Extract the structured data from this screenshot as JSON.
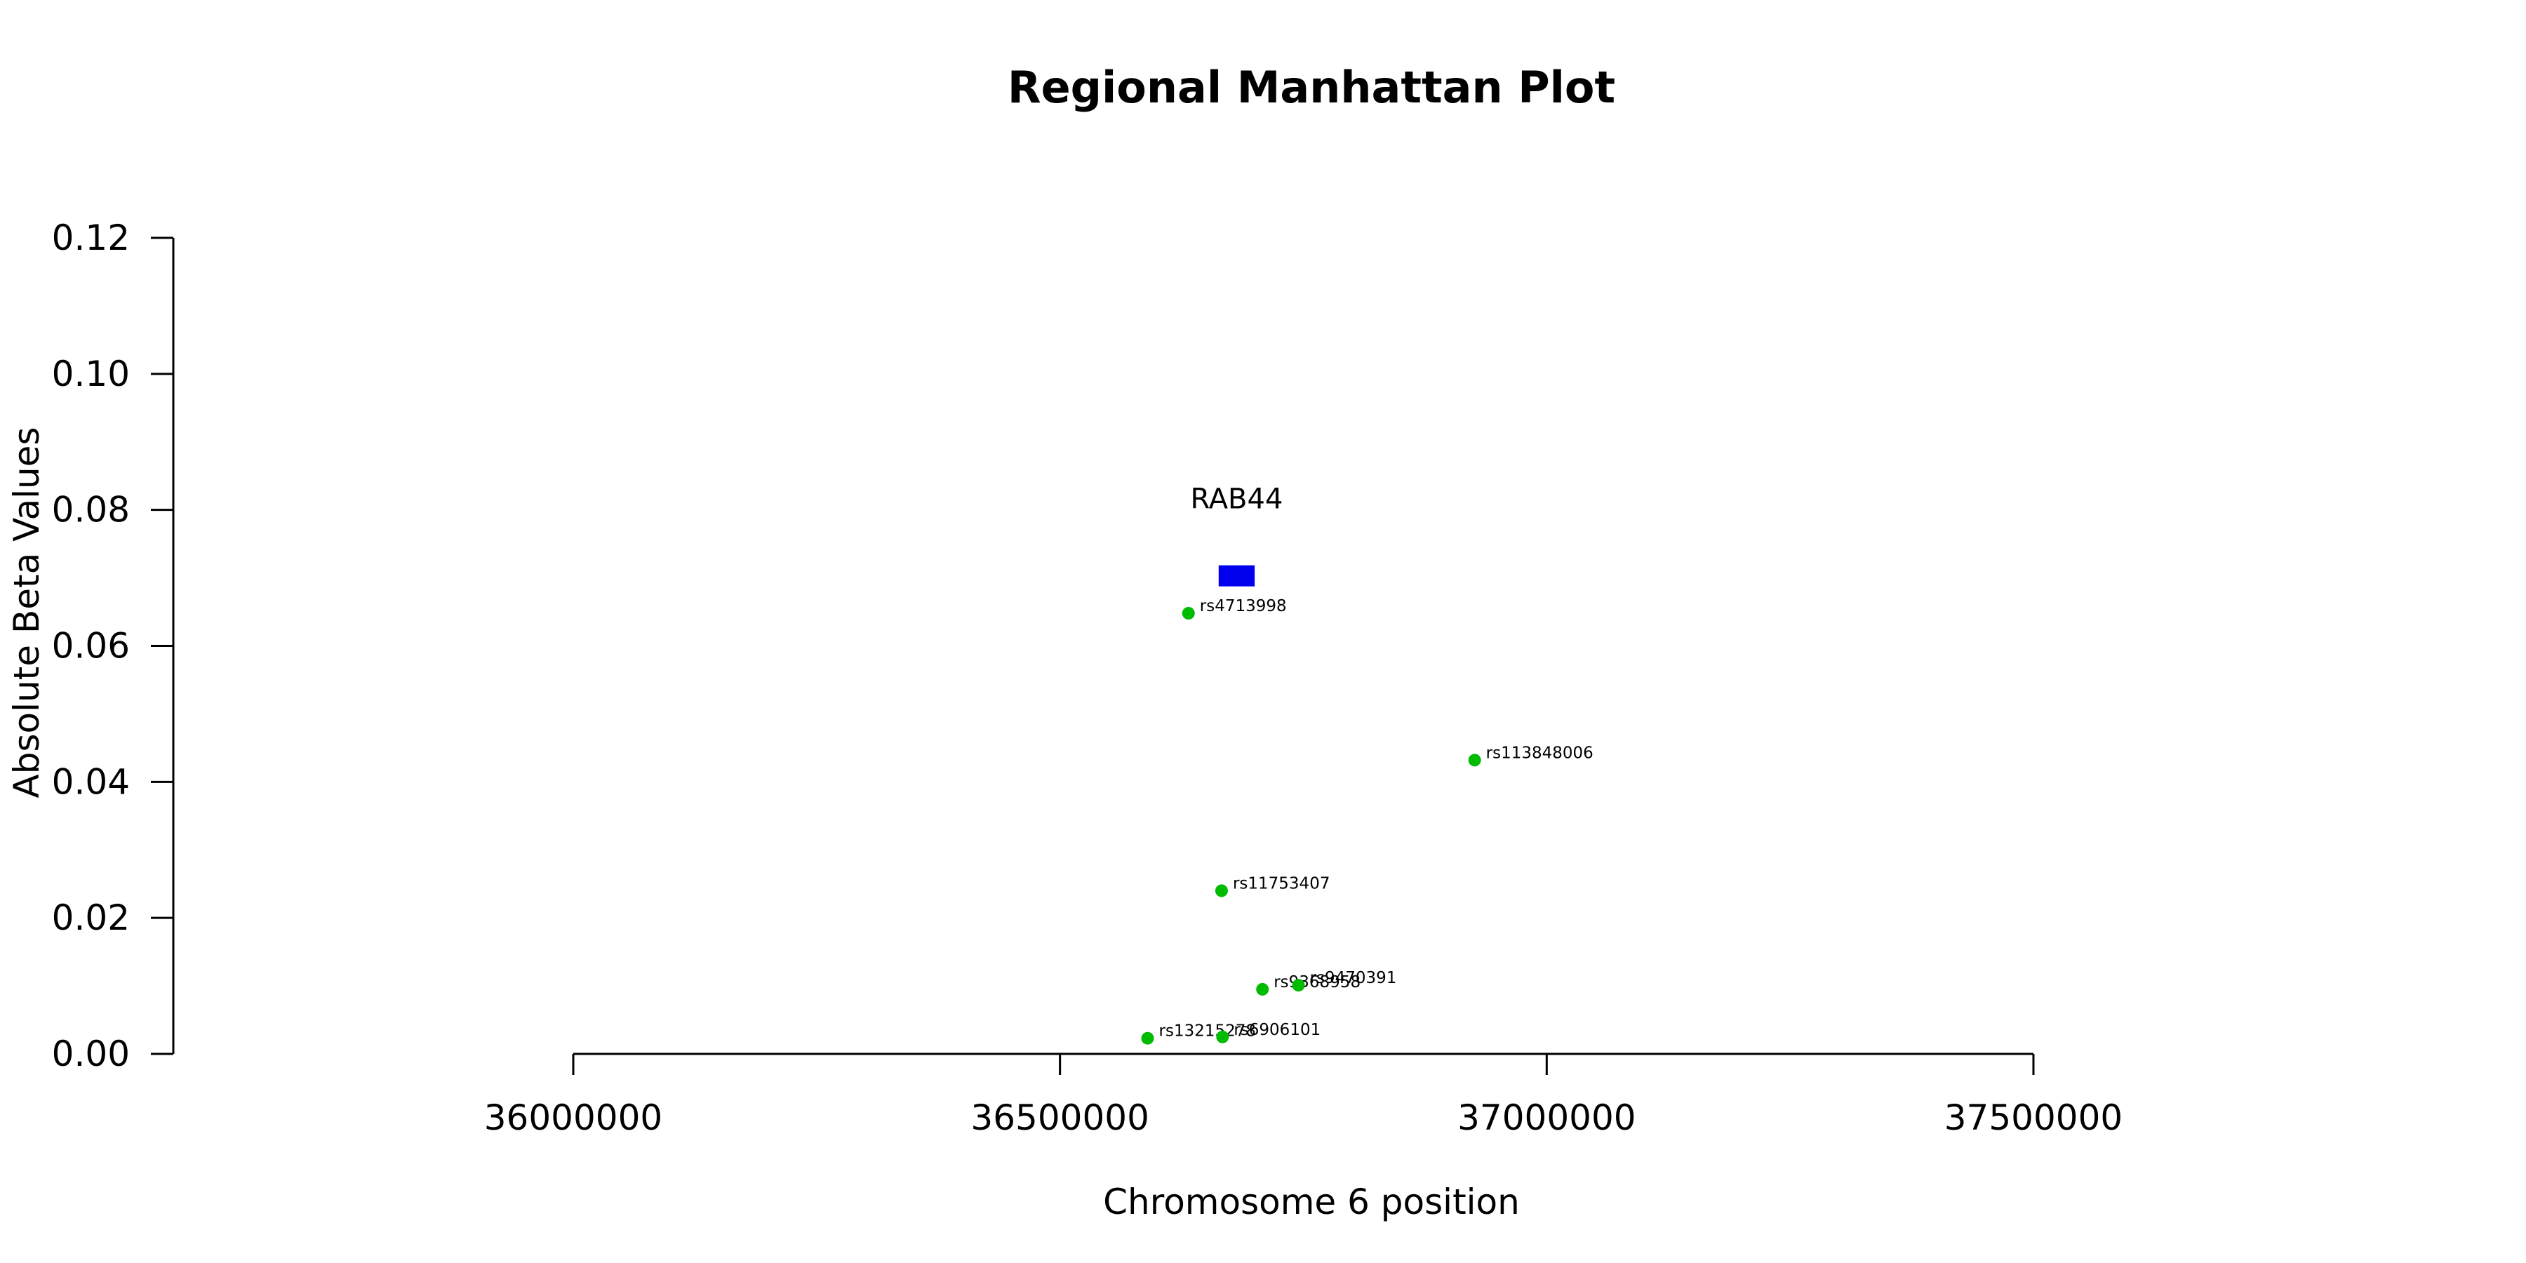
{
  "chart_data": {
    "type": "scatter",
    "title": "Regional Manhattan Plot",
    "xlabel": "Chromosome 6 position",
    "ylabel": "Absolute Beta Values",
    "xlim": [
      36000000,
      37500000
    ],
    "ylim": [
      0,
      0.12
    ],
    "x_ticks": [
      36000000,
      36500000,
      37000000,
      37500000
    ],
    "x_tick_labels": [
      "36000000",
      "36500000",
      "37000000",
      "37500000"
    ],
    "y_ticks": [
      0,
      0.02,
      0.04,
      0.06,
      0.08,
      0.1,
      0.12
    ],
    "y_tick_labels": [
      "0.00",
      "0.02",
      "0.04",
      "0.06",
      "0.08",
      "0.10",
      "0.12"
    ],
    "grid": false,
    "point_color": "#00bb00",
    "points": [
      {
        "label": "rs4713998",
        "x": 36632000,
        "y": 0.0648
      },
      {
        "label": "rs113848006",
        "x": 36926000,
        "y": 0.0432
      },
      {
        "label": "rs11753407",
        "x": 36666000,
        "y": 0.024
      },
      {
        "label": "rs9368958",
        "x": 36708000,
        "y": 0.0095
      },
      {
        "label": "rs9470391",
        "x": 36745000,
        "y": 0.0101
      },
      {
        "label": "rs13215278",
        "x": 36590000,
        "y": 0.0023
      },
      {
        "label": "rs6906101",
        "x": 36667000,
        "y": 0.0025
      }
    ],
    "gene": {
      "name": "RAB44",
      "start": 36663000,
      "end": 36700000,
      "y": 0.0703,
      "color": "#0000ee"
    }
  }
}
